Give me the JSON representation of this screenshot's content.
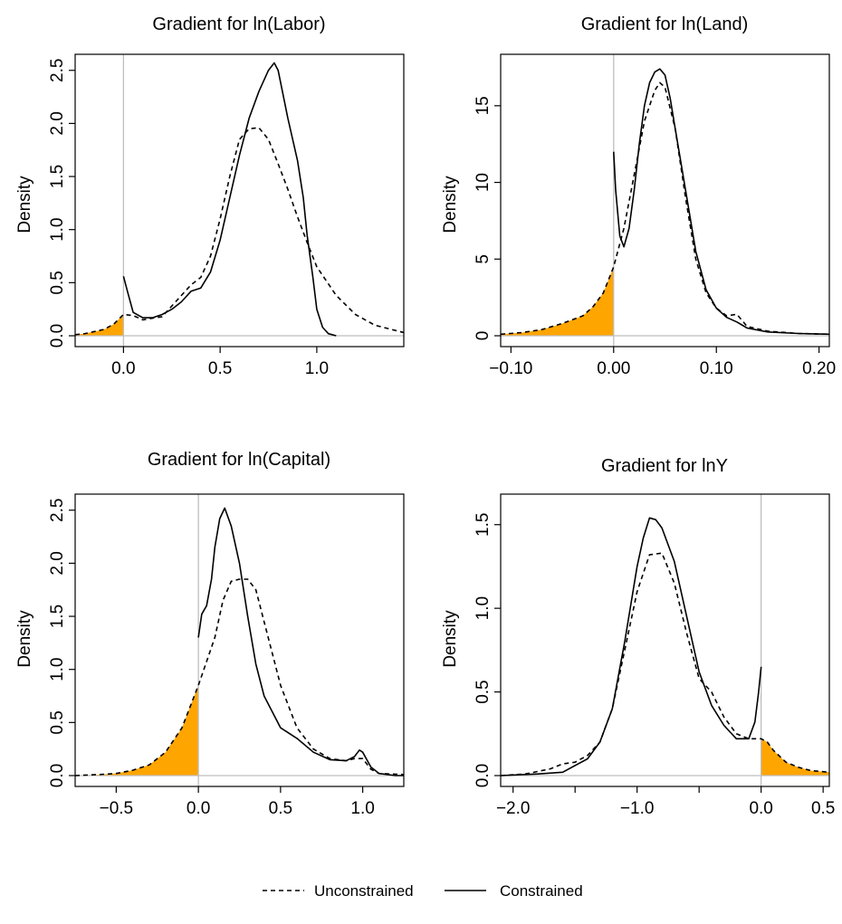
{
  "colors": {
    "shade": "#ffa500",
    "zero_line": "#bebebe",
    "curve": "#000000"
  },
  "legend": {
    "position": "bottom-center",
    "items": [
      {
        "label": "Unconstrained",
        "style": "dashed"
      },
      {
        "label": "Constrained",
        "style": "solid"
      }
    ]
  },
  "chart_data": [
    {
      "type": "line",
      "title": "Gradient for ln(Labor)",
      "ylabel": "Density",
      "xlim": [
        -0.25,
        1.45
      ],
      "ylim": [
        0,
        2.6
      ],
      "xticks": [
        "0.0",
        "0.5",
        "1.0"
      ],
      "xtick_values": [
        0,
        0.5,
        1.0
      ],
      "yticks": [
        "0.0",
        "0.5",
        "1.0",
        "1.5",
        "2.0",
        "2.5"
      ],
      "ytick_values": [
        0,
        0.5,
        1.0,
        1.5,
        2.0,
        2.5
      ],
      "shade_side": "left",
      "grid": false,
      "series": [
        {
          "name": "Unconstrained",
          "style": "dashed",
          "x": [
            -0.25,
            -0.2,
            -0.1,
            -0.05,
            0,
            0.05,
            0.1,
            0.2,
            0.3,
            0.35,
            0.4,
            0.45,
            0.5,
            0.55,
            0.6,
            0.65,
            0.7,
            0.75,
            0.8,
            0.85,
            0.9,
            0.95,
            1.0,
            1.1,
            1.2,
            1.3,
            1.45
          ],
          "y": [
            0.01,
            0.02,
            0.06,
            0.11,
            0.2,
            0.19,
            0.15,
            0.18,
            0.38,
            0.48,
            0.55,
            0.75,
            1.1,
            1.5,
            1.85,
            1.95,
            1.96,
            1.85,
            1.62,
            1.38,
            1.12,
            0.88,
            0.65,
            0.38,
            0.2,
            0.1,
            0.03
          ]
        },
        {
          "name": "Constrained",
          "style": "solid",
          "x": [
            0,
            0.02,
            0.05,
            0.1,
            0.15,
            0.2,
            0.25,
            0.3,
            0.35,
            0.4,
            0.45,
            0.5,
            0.55,
            0.6,
            0.65,
            0.7,
            0.75,
            0.78,
            0.8,
            0.85,
            0.9,
            0.93,
            0.95,
            0.98,
            1.0,
            1.03,
            1.06,
            1.1
          ],
          "y": [
            0.56,
            0.42,
            0.22,
            0.17,
            0.17,
            0.2,
            0.25,
            0.32,
            0.42,
            0.45,
            0.6,
            0.9,
            1.3,
            1.7,
            2.05,
            2.3,
            2.5,
            2.57,
            2.5,
            2.05,
            1.65,
            1.3,
            0.95,
            0.55,
            0.25,
            0.08,
            0.02,
            0.0
          ]
        }
      ]
    },
    {
      "type": "line",
      "title": "Gradient for ln(Land)",
      "ylabel": "Density",
      "xlim": [
        -0.11,
        0.21
      ],
      "ylim": [
        0,
        18
      ],
      "xticks": [
        "−0.10",
        "0.00",
        "0.10",
        "0.20"
      ],
      "xtick_values": [
        -0.1,
        0,
        0.1,
        0.2
      ],
      "yticks": [
        "0",
        "5",
        "10",
        "15"
      ],
      "ytick_values": [
        0,
        5,
        10,
        15
      ],
      "shade_side": "left",
      "grid": false,
      "series": [
        {
          "name": "Unconstrained",
          "style": "dashed",
          "x": [
            -0.11,
            -0.09,
            -0.07,
            -0.05,
            -0.03,
            -0.02,
            -0.01,
            0,
            0.01,
            0.02,
            0.03,
            0.04,
            0.045,
            0.05,
            0.06,
            0.07,
            0.08,
            0.09,
            0.1,
            0.11,
            0.12,
            0.13,
            0.15,
            0.18,
            0.21
          ],
          "y": [
            0.1,
            0.2,
            0.4,
            0.8,
            1.3,
            1.9,
            2.8,
            4.5,
            7.0,
            10.5,
            14.0,
            16.0,
            16.5,
            16.2,
            13.5,
            9.0,
            5.0,
            2.8,
            1.8,
            1.3,
            1.4,
            0.6,
            0.3,
            0.15,
            0.1
          ]
        },
        {
          "name": "Constrained",
          "style": "solid",
          "x": [
            0,
            0.002,
            0.006,
            0.01,
            0.015,
            0.02,
            0.025,
            0.03,
            0.035,
            0.04,
            0.045,
            0.05,
            0.055,
            0.06,
            0.07,
            0.08,
            0.09,
            0.1,
            0.11,
            0.12,
            0.13,
            0.15,
            0.18,
            0.21
          ],
          "y": [
            12.0,
            9.5,
            6.5,
            5.8,
            7.0,
            9.5,
            12.5,
            15.0,
            16.5,
            17.2,
            17.4,
            17.0,
            15.5,
            13.5,
            9.5,
            5.5,
            3.0,
            1.8,
            1.2,
            0.9,
            0.5,
            0.25,
            0.15,
            0.1
          ]
        }
      ]
    },
    {
      "type": "line",
      "title": "Gradient for ln(Capital)",
      "ylabel": "Density",
      "xlim": [
        -0.75,
        1.25
      ],
      "ylim": [
        0,
        2.6
      ],
      "xticks": [
        "−0.5",
        "0.0",
        "0.5",
        "1.0"
      ],
      "xtick_values": [
        -0.5,
        0,
        0.5,
        1.0
      ],
      "yticks": [
        "0.0",
        "0.5",
        "1.0",
        "1.5",
        "2.0",
        "2.5"
      ],
      "ytick_values": [
        0,
        0.5,
        1.0,
        1.5,
        2.0,
        2.5
      ],
      "shade_side": "left",
      "grid": false,
      "series": [
        {
          "name": "Unconstrained",
          "style": "dashed",
          "x": [
            -0.75,
            -0.6,
            -0.5,
            -0.4,
            -0.3,
            -0.2,
            -0.1,
            0,
            0.1,
            0.15,
            0.2,
            0.25,
            0.3,
            0.35,
            0.4,
            0.5,
            0.6,
            0.7,
            0.8,
            0.9,
            0.95,
            1.0,
            1.05,
            1.1,
            1.25
          ],
          "y": [
            0.0,
            0.01,
            0.02,
            0.05,
            0.1,
            0.22,
            0.45,
            0.85,
            1.3,
            1.65,
            1.83,
            1.85,
            1.85,
            1.75,
            1.45,
            0.85,
            0.45,
            0.25,
            0.16,
            0.14,
            0.16,
            0.16,
            0.06,
            0.02,
            0.01
          ]
        },
        {
          "name": "Constrained",
          "style": "solid",
          "x": [
            0,
            0.02,
            0.05,
            0.08,
            0.1,
            0.13,
            0.16,
            0.2,
            0.25,
            0.3,
            0.35,
            0.4,
            0.5,
            0.6,
            0.7,
            0.8,
            0.9,
            0.95,
            0.98,
            1.0,
            1.05,
            1.1,
            1.2,
            1.25
          ],
          "y": [
            1.3,
            1.52,
            1.6,
            1.85,
            2.15,
            2.42,
            2.52,
            2.35,
            2.0,
            1.5,
            1.05,
            0.75,
            0.45,
            0.35,
            0.22,
            0.15,
            0.14,
            0.18,
            0.24,
            0.22,
            0.08,
            0.02,
            0.0,
            0.0
          ]
        }
      ]
    },
    {
      "type": "line",
      "title": "Gradient for lnY",
      "ylabel": "Density",
      "xlim": [
        -2.1,
        0.55
      ],
      "ylim": [
        0,
        1.65
      ],
      "xticks": [
        "−2.0",
        "−1.0",
        "0.0",
        "0.5"
      ],
      "xtick_values": [
        -2.0,
        -1.0,
        0,
        0.5
      ],
      "yticks": [
        "0.0",
        "0.5",
        "1.0",
        "1.5"
      ],
      "ytick_values": [
        0,
        0.5,
        1.0,
        1.5
      ],
      "shade_side": "right",
      "grid": false,
      "series": [
        {
          "name": "Unconstrained",
          "style": "dashed",
          "x": [
            -2.1,
            -1.9,
            -1.7,
            -1.6,
            -1.5,
            -1.4,
            -1.3,
            -1.2,
            -1.1,
            -1.0,
            -0.9,
            -0.8,
            -0.7,
            -0.6,
            -0.5,
            -0.4,
            -0.3,
            -0.2,
            -0.1,
            0,
            0.05,
            0.1,
            0.2,
            0.3,
            0.4,
            0.55
          ],
          "y": [
            0.0,
            0.01,
            0.04,
            0.07,
            0.08,
            0.12,
            0.2,
            0.4,
            0.75,
            1.1,
            1.32,
            1.33,
            1.15,
            0.85,
            0.58,
            0.5,
            0.35,
            0.25,
            0.22,
            0.22,
            0.2,
            0.15,
            0.08,
            0.05,
            0.03,
            0.02
          ]
        },
        {
          "name": "Constrained",
          "style": "solid",
          "x": [
            -2.1,
            -1.8,
            -1.6,
            -1.4,
            -1.3,
            -1.2,
            -1.1,
            -1.0,
            -0.95,
            -0.9,
            -0.85,
            -0.8,
            -0.7,
            -0.6,
            -0.5,
            -0.4,
            -0.3,
            -0.2,
            -0.1,
            -0.05,
            -0.02,
            0
          ],
          "y": [
            0.0,
            0.01,
            0.02,
            0.1,
            0.2,
            0.4,
            0.8,
            1.25,
            1.42,
            1.54,
            1.53,
            1.48,
            1.28,
            0.95,
            0.62,
            0.42,
            0.3,
            0.22,
            0.22,
            0.32,
            0.5,
            0.65
          ]
        }
      ]
    }
  ]
}
